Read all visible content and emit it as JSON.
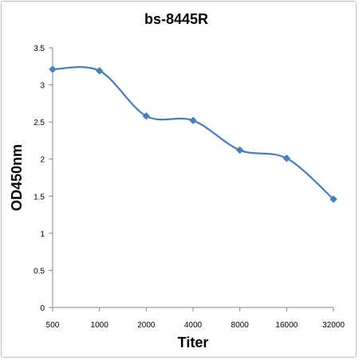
{
  "chart_data": {
    "type": "line",
    "title": "bs-8445R",
    "xlabel": "Titer",
    "ylabel": "OD450nm",
    "categories": [
      "500",
      "1000",
      "2000",
      "4000",
      "8000",
      "16000",
      "32000"
    ],
    "series": [
      {
        "values": [
          3.21,
          3.19,
          2.58,
          2.52,
          2.12,
          2.01,
          1.46
        ]
      }
    ],
    "ylim": [
      0,
      3.5
    ],
    "yticks": [
      "0",
      "0.5",
      "1",
      "1.5",
      "2",
      "2.5",
      "3",
      "3.5"
    ],
    "smooth": true,
    "marker": "diamond",
    "grid": false,
    "legend": "none",
    "colors": {
      "series": "#4a7ebb",
      "axis": "#868686"
    }
  }
}
